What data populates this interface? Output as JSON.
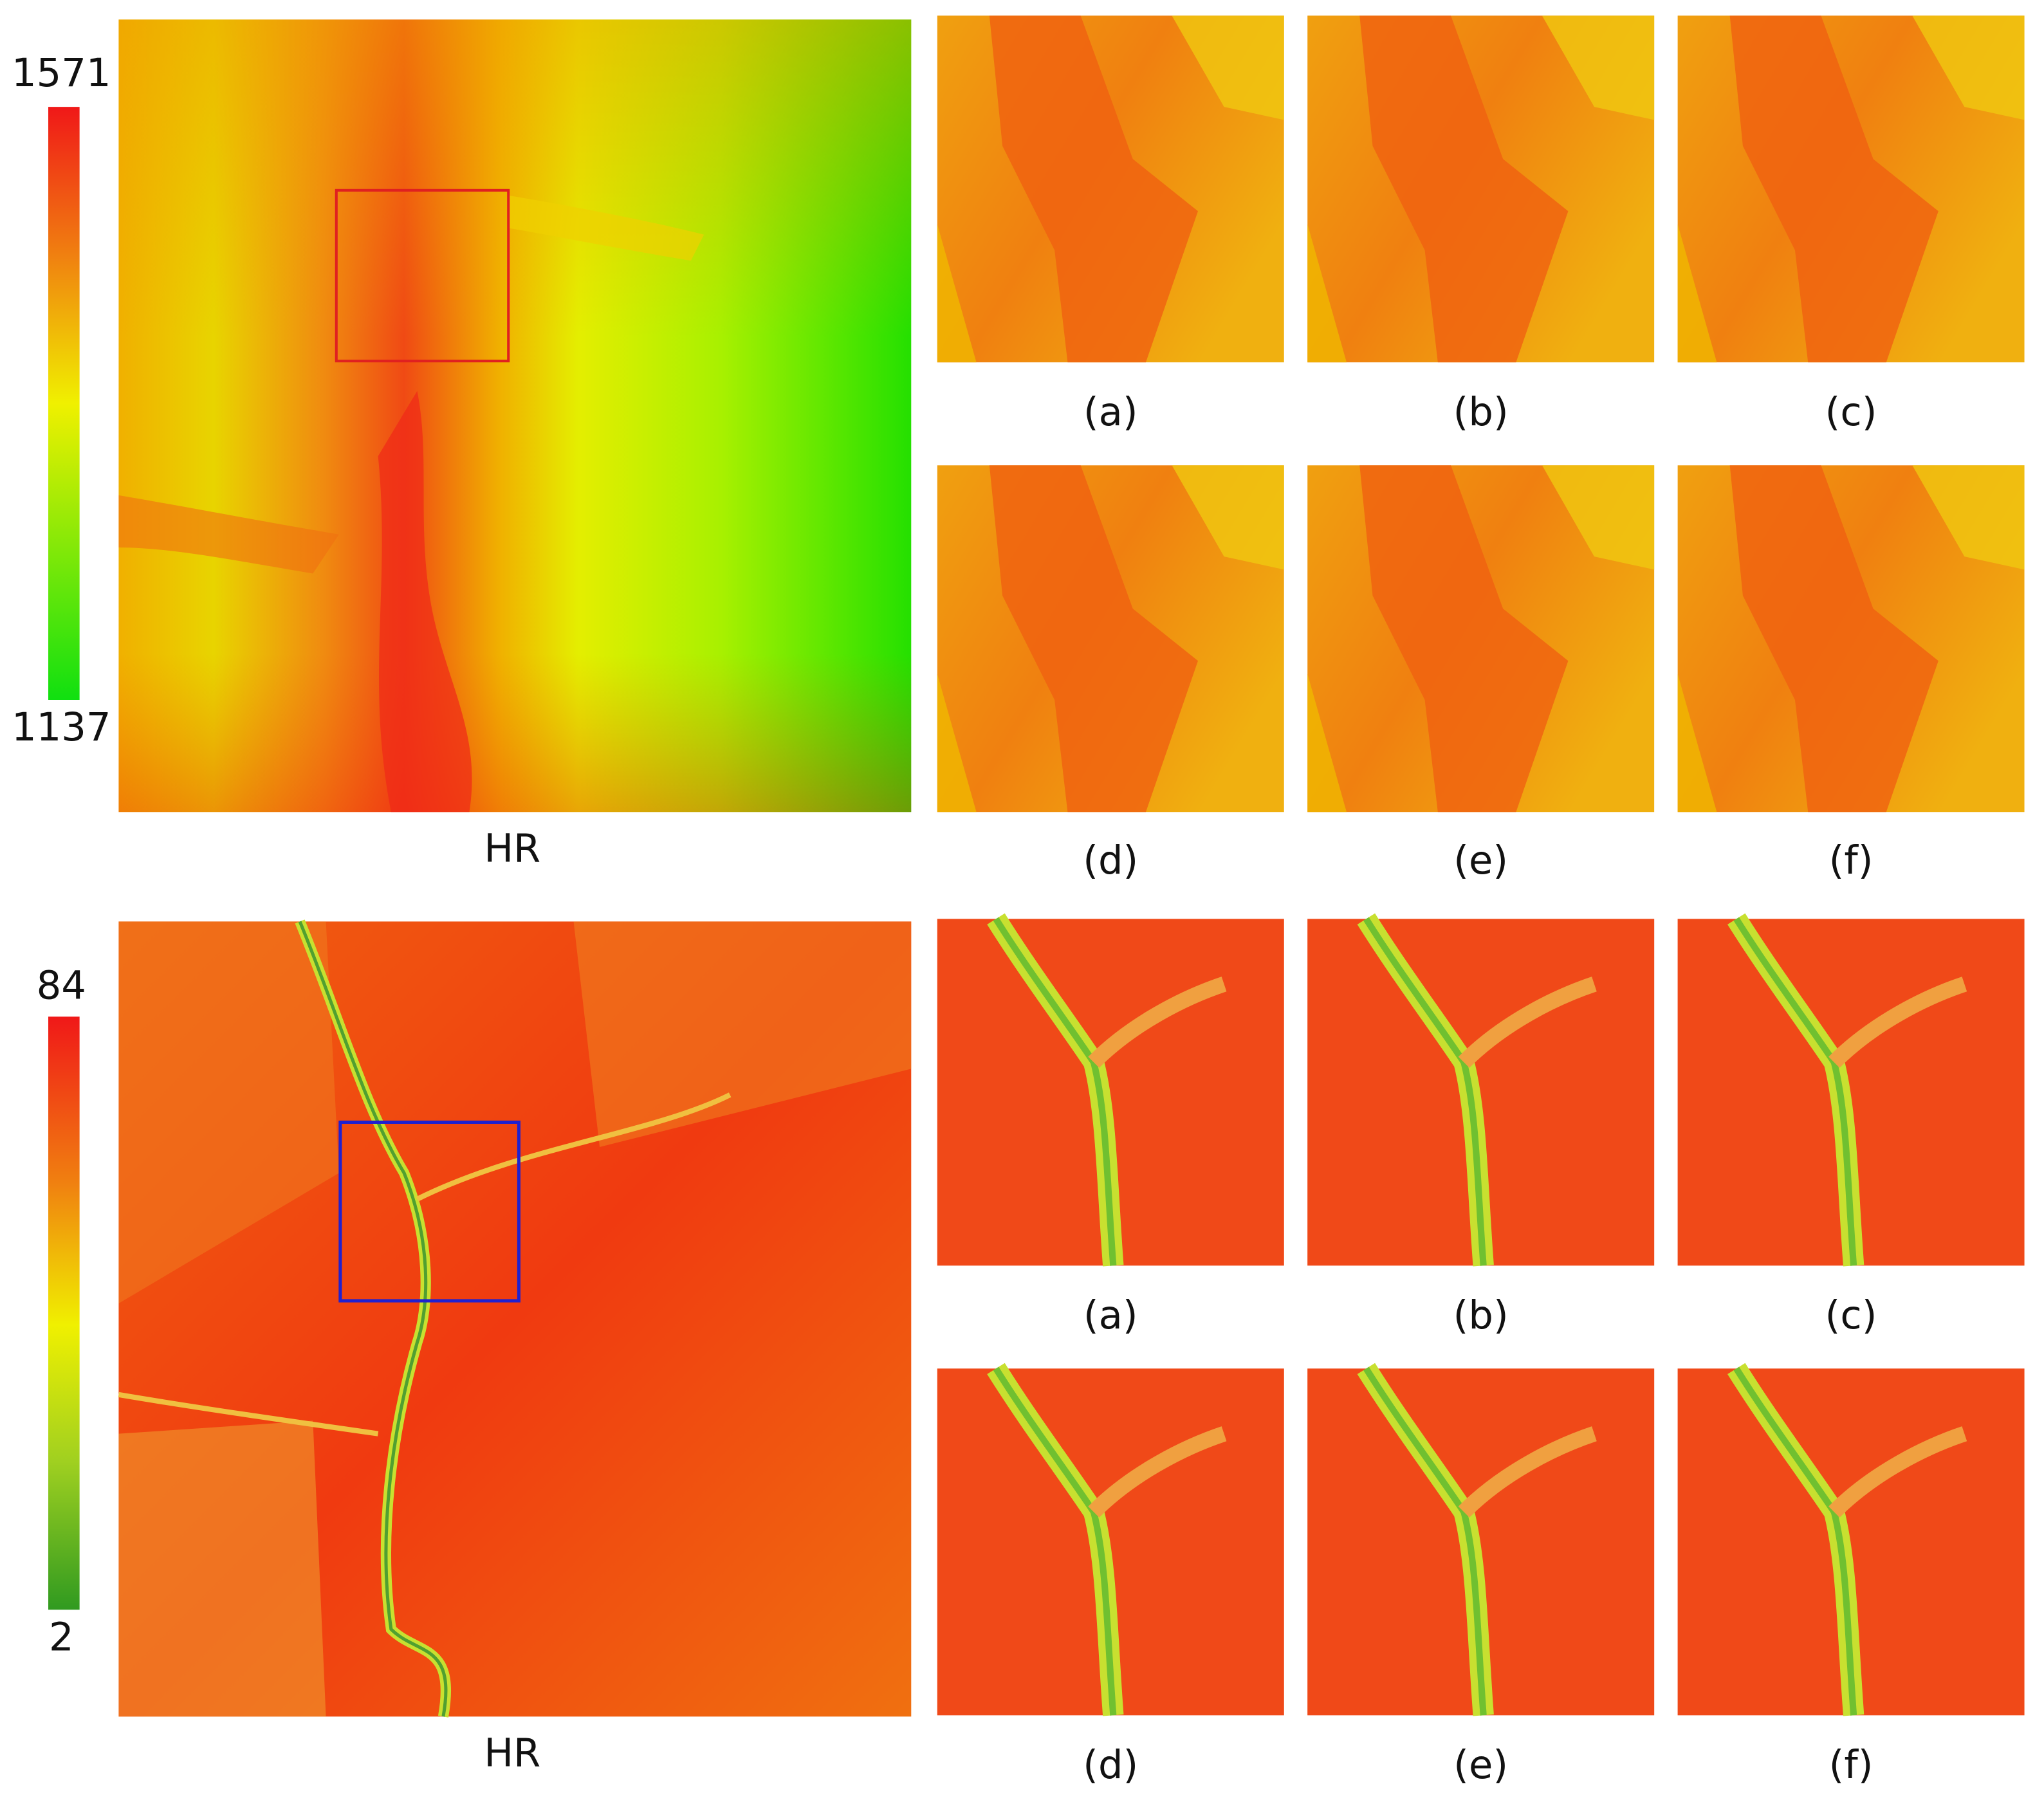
{
  "panels": [
    {
      "colorbar": {
        "max": 1571,
        "min": 1137
      },
      "main_label": "HR",
      "crop_labels": [
        "(a)",
        "(b)",
        "(c)",
        "(d)",
        "(e)",
        "(f)"
      ]
    },
    {
      "colorbar": {
        "max": 84,
        "min": 2
      },
      "main_label": "HR",
      "crop_labels": [
        "(a)",
        "(b)",
        "(c)",
        "(d)",
        "(e)",
        "(f)"
      ]
    }
  ]
}
